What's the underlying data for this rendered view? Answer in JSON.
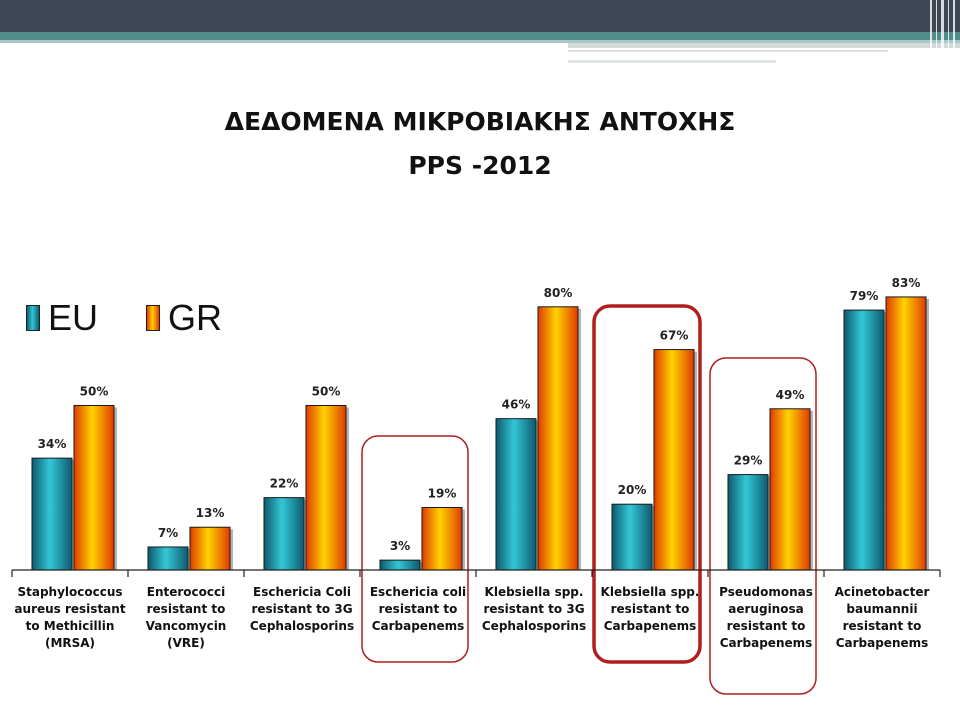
{
  "title_lines": [
    "ΔΕΔΟΜΕΝΑ ΜΙΚΡΟΒΙΑΚΗΣ ΑΝΤΟΧΗΣ",
    "PPS -2012"
  ],
  "legend": {
    "eu": "EU",
    "gr": "GR"
  },
  "colors": {
    "eu": "#1fa3b8",
    "gr": "#ff8a00",
    "highlight": "#b01e1e"
  },
  "chart_data": {
    "type": "bar",
    "title": "ΔΕΔΟΜΕΝΑ ΜΙΚΡΟΒΙΑΚΗΣ ΑΝΤΟΧΗΣ PPS -2012",
    "categories": [
      [
        "Staphylococcus",
        "aureus resistant",
        "to Methicillin",
        "(MRSA)"
      ],
      [
        "Enterococci",
        "resistant to",
        "Vancomycin",
        "(VRE)"
      ],
      [
        "Eschericia Coli",
        "resistant to 3G",
        "Cephalosporins"
      ],
      [
        "Eschericia coli",
        "resistant to",
        "Carbapenems"
      ],
      [
        "Klebsiella spp.",
        "resistant to 3G",
        "Cephalosporins"
      ],
      [
        "Klebsiella spp.",
        "resistant to",
        "Carbapenems"
      ],
      [
        "Pseudomonas",
        "aeruginosa",
        "resistant to",
        "Carbapenems"
      ],
      [
        "Acinetobacter",
        "baumannii",
        "resistant to",
        "Carbapenems"
      ]
    ],
    "series": [
      {
        "name": "EU",
        "values": [
          34,
          7,
          22,
          3,
          46,
          20,
          29,
          79
        ],
        "labels": [
          "34%",
          "7%",
          "22%",
          "3%",
          "46%",
          "20%",
          "29%",
          "79%"
        ]
      },
      {
        "name": "GR",
        "values": [
          50,
          13,
          50,
          19,
          80,
          67,
          49,
          83
        ],
        "labels": [
          "50%",
          "13%",
          "50%",
          "19%",
          "80%",
          "67%",
          "49%",
          "83%"
        ]
      }
    ],
    "ylim": [
      0,
      100
    ],
    "grid": false,
    "legend_position": "top-left",
    "highlighted_categories": [
      3,
      5,
      6
    ]
  }
}
